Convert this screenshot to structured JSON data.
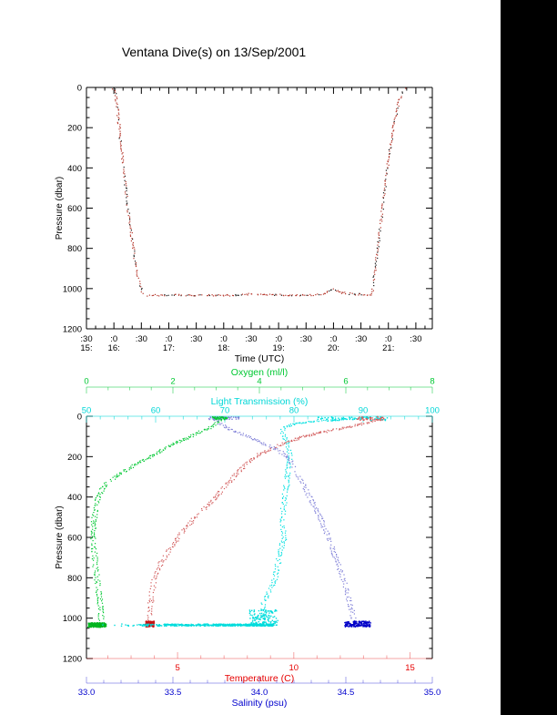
{
  "page": {
    "title": "Ventana Dive(s) on 13/Sep/2001",
    "background": "#ffffff",
    "right_bar_color": "#000000"
  },
  "chart_data": [
    {
      "id": "dive-time-series",
      "type": "scatter",
      "xlabel": "Time (UTC)",
      "ylabel": "Pressure (dbar)",
      "xlim": [
        15.5,
        21.8
      ],
      "ylim": [
        1200,
        0
      ],
      "grid": false,
      "x_ticks": [
        15.5,
        16,
        16.5,
        17,
        17.5,
        18,
        18.5,
        19,
        19.5,
        20,
        20.5,
        21,
        21.5
      ],
      "x_tick_minute_labels": [
        ":30",
        ":0",
        ":30",
        ":0",
        ":30",
        ":0",
        ":30",
        ":0",
        ":30",
        ":0",
        ":30",
        ":0",
        ":30"
      ],
      "x_tick_hour_labels": [
        "15:",
        "16:",
        null,
        "17:",
        null,
        "18:",
        null,
        "19:",
        null,
        "20:",
        null,
        "21:",
        null
      ],
      "x_minor_step_hours": 0.166667,
      "y_ticks": [
        0,
        200,
        400,
        600,
        800,
        1000,
        1200
      ],
      "y_tick_labels": [
        "0",
        "200",
        "400",
        "600",
        "800",
        "1000",
        "1200"
      ],
      "y_minor_step": 50,
      "axis_color": "#000000",
      "series": [
        {
          "name": "dive-depth-track",
          "colors": [
            "#b43428",
            "#141414"
          ],
          "points_time_pressure": [
            [
              15.98,
              2
            ],
            [
              16.0,
              0
            ],
            [
              16.05,
              90
            ],
            [
              16.1,
              230
            ],
            [
              16.16,
              390
            ],
            [
              16.22,
              540
            ],
            [
              16.28,
              670
            ],
            [
              16.34,
              790
            ],
            [
              16.4,
              890
            ],
            [
              16.46,
              975
            ],
            [
              16.51,
              1020
            ],
            [
              16.55,
              1032
            ],
            [
              16.7,
              1030
            ],
            [
              16.9,
              1031
            ],
            [
              17.1,
              1029
            ],
            [
              17.4,
              1031
            ],
            [
              17.7,
              1030
            ],
            [
              18.0,
              1031
            ],
            [
              18.25,
              1030
            ],
            [
              18.45,
              1025
            ],
            [
              18.6,
              1027
            ],
            [
              18.8,
              1028
            ],
            [
              19.0,
              1029
            ],
            [
              19.2,
              1030
            ],
            [
              19.45,
              1030
            ],
            [
              19.65,
              1029
            ],
            [
              19.8,
              1027
            ],
            [
              19.87,
              1018
            ],
            [
              19.93,
              1005
            ],
            [
              19.97,
              999
            ],
            [
              20.01,
              1003
            ],
            [
              20.05,
              1014
            ],
            [
              20.09,
              1008
            ],
            [
              20.13,
              1020
            ],
            [
              20.18,
              1015
            ],
            [
              20.24,
              1026
            ],
            [
              20.3,
              1022
            ],
            [
              20.38,
              1028
            ],
            [
              20.48,
              1025
            ],
            [
              20.57,
              1029
            ],
            [
              20.65,
              1027
            ],
            [
              20.69,
              1030
            ],
            [
              20.73,
              950
            ],
            [
              20.79,
              810
            ],
            [
              20.86,
              650
            ],
            [
              20.93,
              490
            ],
            [
              21.0,
              340
            ],
            [
              21.08,
              200
            ],
            [
              21.16,
              90
            ],
            [
              21.24,
              25
            ],
            [
              21.3,
              5
            ],
            [
              21.33,
              0
            ]
          ]
        }
      ]
    },
    {
      "id": "ctd-profiles",
      "type": "scatter",
      "ylabel": "Pressure (dbar)",
      "ylim": [
        1200,
        0
      ],
      "y_ticks": [
        0,
        200,
        400,
        600,
        800,
        1000,
        1200
      ],
      "y_tick_labels": [
        "0",
        "200",
        "400",
        "600",
        "800",
        "1000",
        "1200"
      ],
      "y_minor_step": 50,
      "axes": {
        "oxygen": {
          "label": "Oxygen (ml/l)",
          "color": "#00c832",
          "lim": [
            0,
            8
          ],
          "ticks": [
            0,
            2,
            4,
            6,
            8
          ],
          "tick_labels": [
            "0",
            "2",
            "4",
            "6",
            "8"
          ],
          "minor_step": 0.5,
          "position": "top-detached"
        },
        "light": {
          "label": "Light Transmission (%)",
          "color": "#00d7d7",
          "lim": [
            50,
            100
          ],
          "ticks": [
            50,
            60,
            70,
            80,
            90,
            100
          ],
          "tick_labels": [
            "50",
            "60",
            "70",
            "80",
            "90",
            "100"
          ],
          "minor_step": 2,
          "position": "top-edge"
        },
        "temperature": {
          "label": "Temperature (C)",
          "color": "#e60000",
          "lim": [
            1.08,
            15.96
          ],
          "ticks": [
            5,
            10,
            15
          ],
          "tick_labels": [
            "5",
            "10",
            "15"
          ],
          "minor_step": 1,
          "position": "bottom-edge"
        },
        "salinity": {
          "label": "Salinity (psu)",
          "color": "#0000cd",
          "lim": [
            33.0,
            35.0
          ],
          "ticks": [
            33.0,
            33.5,
            34.0,
            34.5,
            35.0
          ],
          "tick_labels": [
            "33.0",
            "33.5",
            "34.0",
            "34.5",
            "35.0"
          ],
          "minor_step": 0.1,
          "position": "bottom-detached"
        }
      },
      "series": [
        {
          "name": "oxygen-profile",
          "axis": "oxygen",
          "color": "#00c832",
          "points_pressure_value": [
            [
              2,
              3.12
            ],
            [
              20,
              3.08
            ],
            [
              40,
              2.95
            ],
            [
              60,
              2.78
            ],
            [
              80,
              2.58
            ],
            [
              100,
              2.38
            ],
            [
              130,
              2.05
            ],
            [
              160,
              1.78
            ],
            [
              200,
              1.45
            ],
            [
              240,
              1.1
            ],
            [
              280,
              0.78
            ],
            [
              320,
              0.5
            ],
            [
              360,
              0.34
            ],
            [
              400,
              0.26
            ],
            [
              450,
              0.2
            ],
            [
              500,
              0.17
            ],
            [
              550,
              0.15
            ],
            [
              600,
              0.15
            ],
            [
              650,
              0.16
            ],
            [
              700,
              0.18
            ],
            [
              750,
              0.2
            ],
            [
              800,
              0.23
            ],
            [
              850,
              0.26
            ],
            [
              900,
              0.29
            ],
            [
              950,
              0.32
            ],
            [
              1000,
              0.33
            ],
            [
              1025,
              0.3
            ]
          ]
        },
        {
          "name": "light-transmission-profile",
          "axis": "light",
          "color": "#00e0e0",
          "points_pressure_value": [
            [
              2,
              91
            ],
            [
              8,
              89.5
            ],
            [
              15,
              86.5
            ],
            [
              25,
              82.5
            ],
            [
              35,
              80
            ],
            [
              50,
              78.6
            ],
            [
              80,
              78.2
            ],
            [
              120,
              78.8
            ],
            [
              160,
              79.2
            ],
            [
              200,
              79.3
            ],
            [
              250,
              79.1
            ],
            [
              300,
              79.0
            ],
            [
              350,
              78.8
            ],
            [
              400,
              78.6
            ],
            [
              450,
              78.4
            ],
            [
              500,
              78.3
            ],
            [
              550,
              78.4
            ],
            [
              600,
              78.5
            ],
            [
              650,
              78.1
            ],
            [
              700,
              77.8
            ],
            [
              750,
              77.4
            ],
            [
              800,
              77.2
            ],
            [
              840,
              76.7
            ],
            [
              880,
              76.1
            ],
            [
              920,
              75.6
            ],
            [
              950,
              75.3
            ],
            [
              980,
              75.6
            ],
            [
              1005,
              76.0
            ],
            [
              1025,
              76.3
            ]
          ]
        },
        {
          "name": "temperature-profile",
          "axis": "temperature",
          "color": "#d25a5a",
          "points_pressure_value": [
            [
              2,
              13.6
            ],
            [
              15,
              13.5
            ],
            [
              30,
              13.1
            ],
            [
              45,
              12.55
            ],
            [
              60,
              11.9
            ],
            [
              80,
              11.05
            ],
            [
              100,
              10.35
            ],
            [
              125,
              9.7
            ],
            [
              150,
              9.2
            ],
            [
              175,
              8.7
            ],
            [
              200,
              8.3
            ],
            [
              230,
              7.95
            ],
            [
              260,
              7.7
            ],
            [
              300,
              7.4
            ],
            [
              340,
              7.05
            ],
            [
              380,
              6.75
            ],
            [
              420,
              6.45
            ],
            [
              460,
              6.05
            ],
            [
              500,
              5.7
            ],
            [
              540,
              5.4
            ],
            [
              580,
              5.12
            ],
            [
              620,
              4.88
            ],
            [
              660,
              4.62
            ],
            [
              700,
              4.4
            ],
            [
              740,
              4.2
            ],
            [
              780,
              4.05
            ],
            [
              820,
              3.95
            ],
            [
              860,
              3.88
            ],
            [
              900,
              3.84
            ],
            [
              950,
              3.8
            ],
            [
              1000,
              3.78
            ],
            [
              1025,
              3.76
            ]
          ]
        },
        {
          "name": "salinity-profile",
          "axis": "salinity",
          "color": "#8080d8",
          "points_pressure_value": [
            [
              2,
              33.74
            ],
            [
              20,
              33.75
            ],
            [
              40,
              33.78
            ],
            [
              60,
              33.82
            ],
            [
              80,
              33.88
            ],
            [
              100,
              33.94
            ],
            [
              125,
              34.0
            ],
            [
              150,
              34.07
            ],
            [
              175,
              34.12
            ],
            [
              200,
              34.16
            ],
            [
              250,
              34.2
            ],
            [
              300,
              34.23
            ],
            [
              350,
              34.26
            ],
            [
              400,
              34.29
            ],
            [
              450,
              34.32
            ],
            [
              500,
              34.35
            ],
            [
              550,
              34.37
            ],
            [
              600,
              34.4
            ],
            [
              650,
              34.42
            ],
            [
              700,
              34.44
            ],
            [
              750,
              34.46
            ],
            [
              800,
              34.48
            ],
            [
              850,
              34.5
            ],
            [
              900,
              34.51
            ],
            [
              950,
              34.53
            ],
            [
              1000,
              34.54
            ],
            [
              1025,
              34.55
            ]
          ]
        }
      ],
      "clusters": [
        {
          "name": "oxygen-bottom-blob",
          "axis": "oxygen",
          "color": "#00b41e",
          "p": [
            1020,
            1042
          ],
          "v": [
            0.02,
            0.45
          ],
          "n": 200
        },
        {
          "name": "temperature-bottom-blob",
          "axis": "temperature",
          "color": "#c81414",
          "p": [
            1012,
            1040
          ],
          "v": [
            3.6,
            3.97
          ],
          "n": 170
        },
        {
          "name": "salinity-bottom-blob",
          "axis": "salinity",
          "color": "#0000c8",
          "p": [
            1012,
            1040
          ],
          "v": [
            34.49,
            34.64
          ],
          "n": 170
        },
        {
          "name": "light-bottom-streak",
          "axis": "light",
          "color": "#00dcdc",
          "p": [
            1026,
            1036
          ],
          "v": [
            50.5,
            77
          ],
          "n": 520,
          "bias": "right"
        },
        {
          "name": "light-near-bottom-cloud",
          "axis": "light",
          "color": "#00dcdc",
          "p": [
            955,
            1032
          ],
          "v": [
            73.5,
            77.6
          ],
          "n": 130
        },
        {
          "name": "temperature-surface-scatter",
          "axis": "temperature",
          "color": "#d25a5a",
          "p": [
            0,
            18
          ],
          "v": [
            12.7,
            13.85
          ],
          "n": 55
        },
        {
          "name": "light-surface-scatter",
          "axis": "light",
          "color": "#00e0e0",
          "p": [
            0,
            18
          ],
          "v": [
            83,
            93.5
          ],
          "n": 55
        },
        {
          "name": "salinity-surface-scatter",
          "axis": "salinity",
          "color": "#8080d8",
          "p": [
            0,
            14
          ],
          "v": [
            33.7,
            33.88
          ],
          "n": 35
        },
        {
          "name": "oxygen-surface-scatter",
          "axis": "oxygen",
          "color": "#00c832",
          "p": [
            0,
            14
          ],
          "v": [
            2.9,
            3.25
          ],
          "n": 35
        }
      ]
    }
  ]
}
